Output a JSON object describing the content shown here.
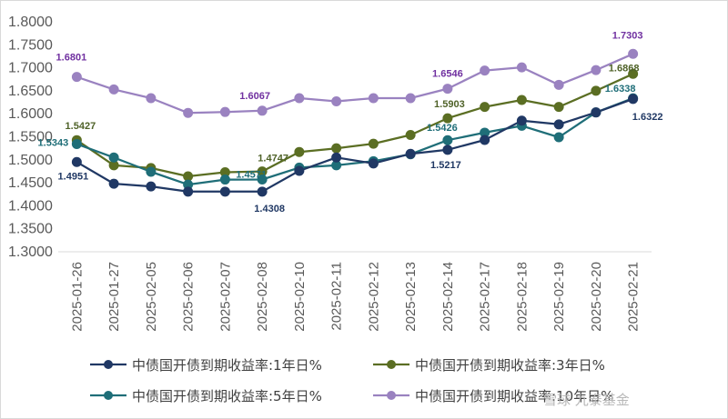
{
  "chart_data": {
    "type": "line",
    "categories": [
      "2025-01-26",
      "2025-01-27",
      "2025-02-05",
      "2025-02-06",
      "2025-02-07",
      "2025-02-08",
      "2025-02-10",
      "2025-02-11",
      "2025-02-12",
      "2025-02-13",
      "2025-02-14",
      "2025-02-17",
      "2025-02-18",
      "2025-02-19",
      "2025-02-20",
      "2025-02-21"
    ],
    "ylim": [
      1.3,
      1.8
    ],
    "yticks": [
      "1.3000",
      "1.3500",
      "1.4000",
      "1.4500",
      "1.5000",
      "1.5500",
      "1.6000",
      "1.6500",
      "1.7000",
      "1.7500",
      "1.8000"
    ],
    "grid": false,
    "legend_position": "bottom",
    "series": [
      {
        "name": "中债国开债到期收益率:1年日%",
        "color": "#203864",
        "values": [
          1.4951,
          1.448,
          1.442,
          1.4308,
          1.4308,
          1.4308,
          1.476,
          1.505,
          1.492,
          1.513,
          1.5217,
          1.543,
          1.585,
          1.577,
          1.603,
          1.6322
        ],
        "labels": [
          {
            "i": 0,
            "text": "1.4951"
          },
          {
            "i": 5,
            "text": "1.4308"
          },
          {
            "i": 10,
            "text": "1.5217"
          },
          {
            "i": 15,
            "text": "1.6322"
          }
        ]
      },
      {
        "name": "中债国开债到期收益率:3年日%",
        "color": "#5b6e23",
        "values": [
          1.5427,
          1.488,
          1.482,
          1.464,
          1.473,
          1.4747,
          1.517,
          1.525,
          1.535,
          1.554,
          1.5903,
          1.615,
          1.63,
          1.615,
          1.65,
          1.6868
        ],
        "labels": [
          {
            "i": 0,
            "text": "1.5427"
          },
          {
            "i": 5,
            "text": "1.4747"
          },
          {
            "i": 10,
            "text": "1.5903"
          },
          {
            "i": 15,
            "text": "1.6868"
          }
        ]
      },
      {
        "name": "中债国开债到期收益率:5年日%",
        "color": "#1f6e78",
        "values": [
          1.5343,
          1.505,
          1.474,
          1.446,
          1.457,
          1.4571,
          1.483,
          1.488,
          1.497,
          1.512,
          1.5426,
          1.559,
          1.574,
          1.549,
          1.603,
          1.6338
        ],
        "labels": [
          {
            "i": 0,
            "text": "1.5343"
          },
          {
            "i": 5,
            "text": "1.4571"
          },
          {
            "i": 10,
            "text": "1.5426"
          },
          {
            "i": 15,
            "text": "1.6338"
          }
        ]
      },
      {
        "name": "中债国开债到期收益率:10年日%",
        "color": "#9a82c0",
        "values": [
          1.6801,
          1.653,
          1.634,
          1.602,
          1.604,
          1.6067,
          1.634,
          1.627,
          1.634,
          1.634,
          1.6546,
          1.694,
          1.701,
          1.663,
          1.695,
          1.7303
        ],
        "labels": [
          {
            "i": 0,
            "text": "1.6801"
          },
          {
            "i": 5,
            "text": "1.6067"
          },
          {
            "i": 10,
            "text": "1.6546"
          },
          {
            "i": 15,
            "text": "1.7303"
          }
        ]
      }
    ]
  },
  "label_colors": {
    "s0": "#203864",
    "s1": "#4f6228",
    "s2": "#1f6e78",
    "s3": "#7030a0"
  },
  "watermark": "雪球 九泰基金"
}
